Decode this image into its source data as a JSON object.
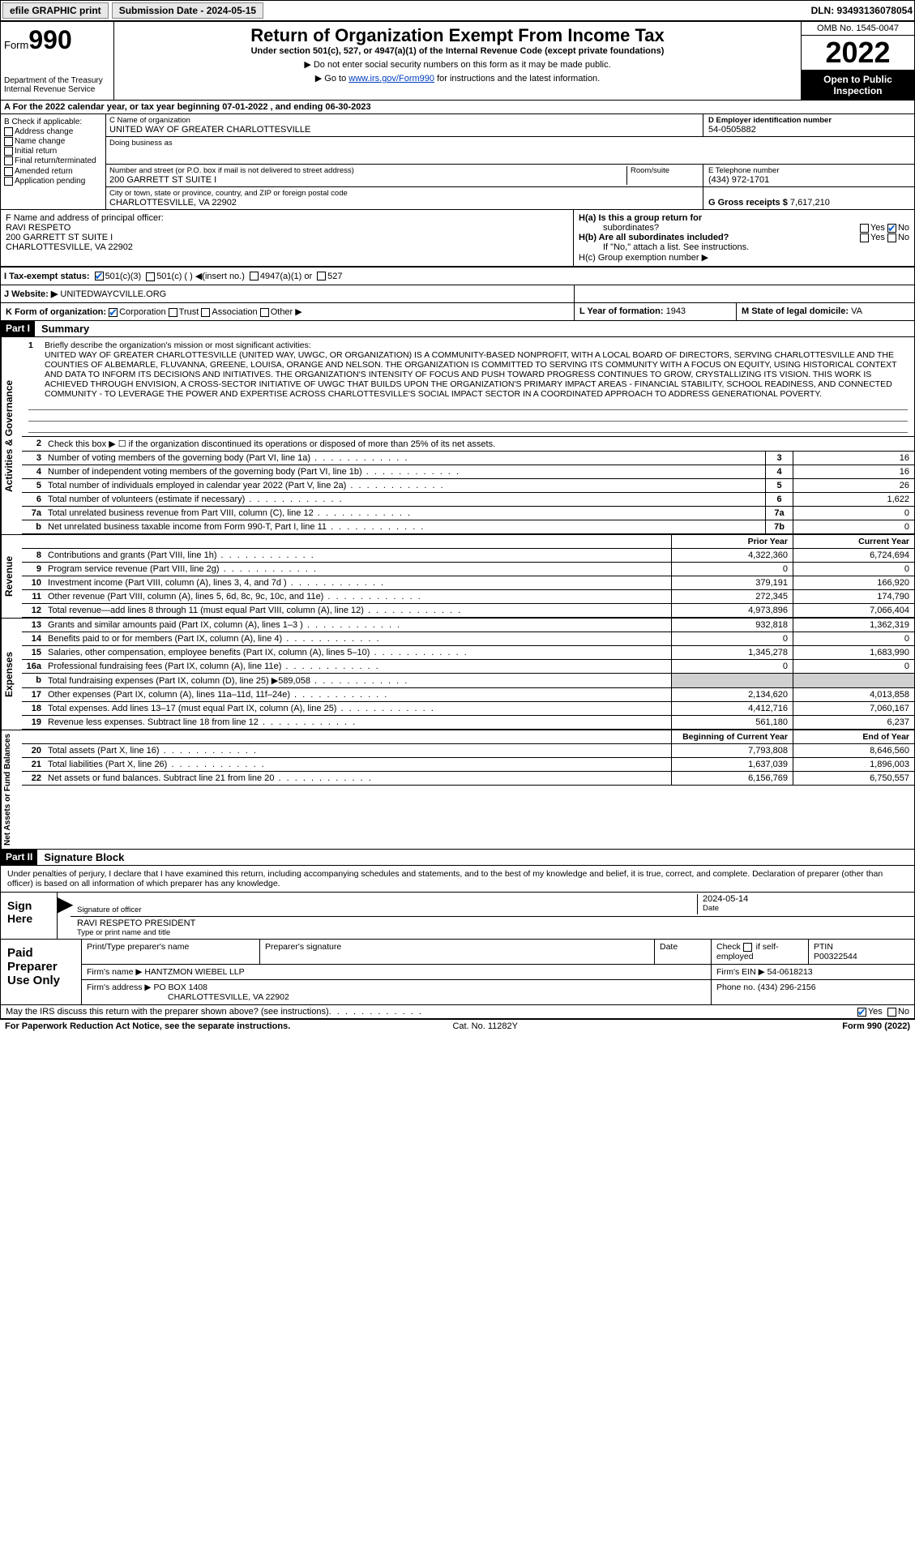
{
  "colors": {
    "text": "#000000",
    "bg": "#ffffff",
    "link": "#0040c0",
    "shaded": "#d0d0d0",
    "inverse_bg": "#000000",
    "inverse_fg": "#ffffff",
    "btn_bg": "#e8e8e8",
    "check": "#0060d0"
  },
  "topbar": {
    "efile": "efile GRAPHIC print",
    "submission_label": "Submission Date - 2024-05-15",
    "dln": "DLN: 93493136078054"
  },
  "header": {
    "form_word": "Form",
    "form_num": "990",
    "dept": "Department of the Treasury",
    "irs": "Internal Revenue Service",
    "title": "Return of Organization Exempt From Income Tax",
    "subtitle": "Under section 501(c), 527, or 4947(a)(1) of the Internal Revenue Code (except private foundations)",
    "note1": "▶ Do not enter social security numbers on this form as it may be made public.",
    "note2_pre": "▶ Go to ",
    "note2_link": "www.irs.gov/Form990",
    "note2_post": " for instructions and the latest information.",
    "omb": "OMB No. 1545-0047",
    "year": "2022",
    "inspection": "Open to Public Inspection"
  },
  "rowA": "A For the 2022 calendar year, or tax year beginning 07-01-2022   , and ending 06-30-2023",
  "colB": {
    "title": "B Check if applicable:",
    "items": [
      "Address change",
      "Name change",
      "Initial return",
      "Final return/terminated",
      "Amended return",
      "Application pending"
    ]
  },
  "blockC": {
    "name_lbl": "C Name of organization",
    "name": "UNITED WAY OF GREATER CHARLOTTESVILLE",
    "dba_lbl": "Doing business as",
    "dba": "",
    "street_lbl": "Number and street (or P.O. box if mail is not delivered to street address)",
    "street": "200 GARRETT ST SUITE I",
    "room_lbl": "Room/suite",
    "city_lbl": "City or town, state or province, country, and ZIP or foreign postal code",
    "city": "CHARLOTTESVILLE, VA  22902"
  },
  "blockD": {
    "lbl": "D Employer identification number",
    "val": "54-0505882"
  },
  "blockE": {
    "lbl": "E Telephone number",
    "val": "(434) 972-1701"
  },
  "blockG": {
    "lbl": "G Gross receipts $",
    "val": "7,617,210"
  },
  "blockF": {
    "lbl": "F  Name and address of principal officer:",
    "name": "RAVI RESPETO",
    "addr1": "200 GARRETT ST SUITE I",
    "addr2": "CHARLOTTESVILLE, VA  22902"
  },
  "blockH": {
    "a_lbl": "H(a)  Is this a group return for",
    "a_sub": "subordinates?",
    "a_no_checked": true,
    "b_lbl": "H(b)  Are all subordinates included?",
    "b_note": "If \"No,\" attach a list. See instructions.",
    "c_lbl": "H(c)  Group exemption number ▶"
  },
  "taxExempt": {
    "lbl": "I   Tax-exempt status:",
    "c3_checked": true,
    "opts": [
      "501(c)(3)",
      "501(c) (  ) ◀(insert no.)",
      "4947(a)(1) or",
      "527"
    ]
  },
  "website": {
    "lbl": "J  Website: ▶",
    "val": "UNITEDWAYCVILLE.ORG"
  },
  "rowK": {
    "lbl": "K Form of organization:",
    "corp_checked": true,
    "opts": [
      "Corporation",
      "Trust",
      "Association",
      "Other ▶"
    ],
    "L_lbl": "L Year of formation:",
    "L_val": "1943",
    "M_lbl": "M State of legal domicile:",
    "M_val": "VA"
  },
  "part1": {
    "tag": "Part I",
    "title": "Summary"
  },
  "mission": {
    "num": "1",
    "lead": "Briefly describe the organization's mission or most significant activities:",
    "text": "UNITED WAY OF GREATER CHARLOTTESVILLE (UNITED WAY, UWGC, OR ORGANIZATION) IS A COMMUNITY-BASED NONPROFIT, WITH A LOCAL BOARD OF DIRECTORS, SERVING CHARLOTTESVILLE AND THE COUNTIES OF ALBEMARLE, FLUVANNA, GREENE, LOUISA, ORANGE AND NELSON. THE ORGANIZATION IS COMMITTED TO SERVING ITS COMMUNITY WITH A FOCUS ON EQUITY, USING HISTORICAL CONTEXT AND DATA TO INFORM ITS DECISIONS AND INITIATIVES. THE ORGANIZATION'S INTENSITY OF FOCUS AND PUSH TOWARD PROGRESS CONTINUES TO GROW, CRYSTALLIZING ITS VISION. THIS WORK IS ACHIEVED THROUGH ENVISION, A CROSS-SECTOR INITIATIVE OF UWGC THAT BUILDS UPON THE ORGANIZATION'S PRIMARY IMPACT AREAS - FINANCIAL STABILITY, SCHOOL READINESS, AND CONNECTED COMMUNITY - TO LEVERAGE THE POWER AND EXPERTISE ACROSS CHARLOTTESVILLE'S SOCIAL IMPACT SECTOR IN A COORDINATED APPROACH TO ADDRESS GENERATIONAL POVERTY."
  },
  "line2": "Check this box ▶ ☐  if the organization discontinued its operations or disposed of more than 25% of its net assets.",
  "governance": {
    "label": "Activities & Governance",
    "rows": [
      {
        "n": "3",
        "d": "Number of voting members of the governing body (Part VI, line 1a)",
        "box": "3",
        "v": "16"
      },
      {
        "n": "4",
        "d": "Number of independent voting members of the governing body (Part VI, line 1b)",
        "box": "4",
        "v": "16"
      },
      {
        "n": "5",
        "d": "Total number of individuals employed in calendar year 2022 (Part V, line 2a)",
        "box": "5",
        "v": "26"
      },
      {
        "n": "6",
        "d": "Total number of volunteers (estimate if necessary)",
        "box": "6",
        "v": "1,622"
      },
      {
        "n": "7a",
        "d": "Total unrelated business revenue from Part VIII, column (C), line 12",
        "box": "7a",
        "v": "0"
      },
      {
        "n": "b",
        "d": "Net unrelated business taxable income from Form 990-T, Part I, line 11",
        "box": "7b",
        "v": "0"
      }
    ]
  },
  "colHeaders": {
    "prior": "Prior Year",
    "current": "Current Year",
    "boy": "Beginning of Current Year",
    "eoy": "End of Year"
  },
  "revenue": {
    "label": "Revenue",
    "rows": [
      {
        "n": "8",
        "d": "Contributions and grants (Part VIII, line 1h)",
        "py": "4,322,360",
        "cy": "6,724,694"
      },
      {
        "n": "9",
        "d": "Program service revenue (Part VIII, line 2g)",
        "py": "0",
        "cy": "0"
      },
      {
        "n": "10",
        "d": "Investment income (Part VIII, column (A), lines 3, 4, and 7d )",
        "py": "379,191",
        "cy": "166,920"
      },
      {
        "n": "11",
        "d": "Other revenue (Part VIII, column (A), lines 5, 6d, 8c, 9c, 10c, and 11e)",
        "py": "272,345",
        "cy": "174,790"
      },
      {
        "n": "12",
        "d": "Total revenue—add lines 8 through 11 (must equal Part VIII, column (A), line 12)",
        "py": "4,973,896",
        "cy": "7,066,404"
      }
    ]
  },
  "expenses": {
    "label": "Expenses",
    "rows": [
      {
        "n": "13",
        "d": "Grants and similar amounts paid (Part IX, column (A), lines 1–3 )",
        "py": "932,818",
        "cy": "1,362,319"
      },
      {
        "n": "14",
        "d": "Benefits paid to or for members (Part IX, column (A), line 4)",
        "py": "0",
        "cy": "0"
      },
      {
        "n": "15",
        "d": "Salaries, other compensation, employee benefits (Part IX, column (A), lines 5–10)",
        "py": "1,345,278",
        "cy": "1,683,990"
      },
      {
        "n": "16a",
        "d": "Professional fundraising fees (Part IX, column (A), line 11e)",
        "py": "0",
        "cy": "0"
      },
      {
        "n": "b",
        "d": "Total fundraising expenses (Part IX, column (D), line 25) ▶589,058",
        "py": "",
        "cy": "",
        "shaded": true
      },
      {
        "n": "17",
        "d": "Other expenses (Part IX, column (A), lines 11a–11d, 11f–24e)",
        "py": "2,134,620",
        "cy": "4,013,858"
      },
      {
        "n": "18",
        "d": "Total expenses. Add lines 13–17 (must equal Part IX, column (A), line 25)",
        "py": "4,412,716",
        "cy": "7,060,167"
      },
      {
        "n": "19",
        "d": "Revenue less expenses. Subtract line 18 from line 12",
        "py": "561,180",
        "cy": "6,237"
      }
    ]
  },
  "netassets": {
    "label": "Net Assets or Fund Balances",
    "rows": [
      {
        "n": "20",
        "d": "Total assets (Part X, line 16)",
        "py": "7,793,808",
        "cy": "8,646,560"
      },
      {
        "n": "21",
        "d": "Total liabilities (Part X, line 26)",
        "py": "1,637,039",
        "cy": "1,896,003"
      },
      {
        "n": "22",
        "d": "Net assets or fund balances. Subtract line 21 from line 20",
        "py": "6,156,769",
        "cy": "6,750,557"
      }
    ]
  },
  "part2": {
    "tag": "Part II",
    "title": "Signature Block"
  },
  "sigtext": "Under penalties of perjury, I declare that I have examined this return, including accompanying schedules and statements, and to the best of my knowledge and belief, it is true, correct, and complete. Declaration of preparer (other than officer) is based on all information of which preparer has any knowledge.",
  "sign": {
    "label": "Sign Here",
    "sig_of_officer": "Signature of officer",
    "date_lbl": "Date",
    "date": "2024-05-14",
    "name": "RAVI RESPETO  PRESIDENT",
    "name_lbl": "Type or print name and title"
  },
  "preparer": {
    "label": "Paid Preparer Use Only",
    "h1": "Print/Type preparer's name",
    "h2": "Preparer's signature",
    "h3": "Date",
    "h4_lbl": "Check",
    "h4_sub": "if self-employed",
    "ptin_lbl": "PTIN",
    "ptin": "P00322544",
    "firm_name_lbl": "Firm's name   ▶",
    "firm_name": "HANTZMON WIEBEL LLP",
    "firm_ein_lbl": "Firm's EIN ▶",
    "firm_ein": "54-0618213",
    "firm_addr_lbl": "Firm's address ▶",
    "firm_addr1": "PO BOX 1408",
    "firm_addr2": "CHARLOTTESVILLE, VA  22902",
    "phone_lbl": "Phone no.",
    "phone": "(434) 296-2156"
  },
  "discuss": {
    "q": "May the IRS discuss this return with the preparer shown above? (see instructions)",
    "yes_checked": true
  },
  "footer": {
    "left": "For Paperwork Reduction Act Notice, see the separate instructions.",
    "mid": "Cat. No. 11282Y",
    "right": "Form 990 (2022)"
  }
}
